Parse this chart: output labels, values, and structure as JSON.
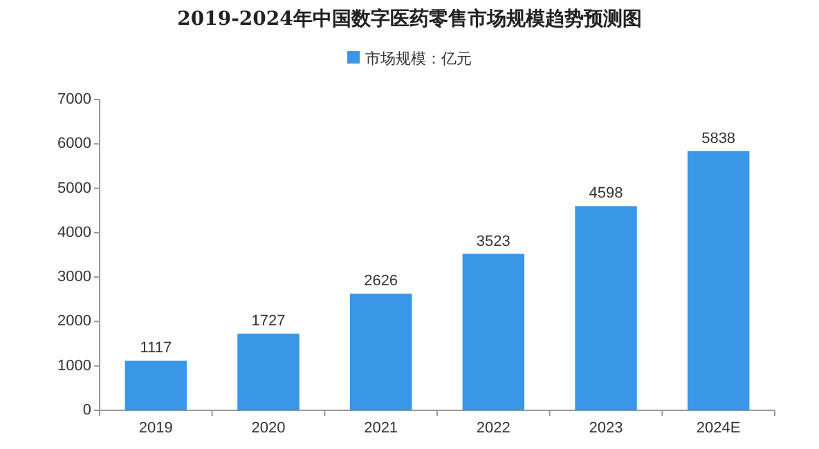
{
  "chart_data": {
    "type": "bar",
    "title": "2019-2024年中国数字医药零售市场规模趋势预测图",
    "categories": [
      "2019",
      "2020",
      "2021",
      "2022",
      "2023",
      "2024E"
    ],
    "series": [
      {
        "name": "市场规模：亿元",
        "color": "#3a96e6",
        "values": [
          1117,
          1727,
          2626,
          3523,
          4598,
          5838
        ]
      }
    ],
    "ylim": [
      0,
      7000
    ],
    "yticks": [
      0,
      1000,
      2000,
      3000,
      4000,
      5000,
      6000,
      7000
    ],
    "data_labels": true,
    "legend": "top",
    "grid": false
  }
}
